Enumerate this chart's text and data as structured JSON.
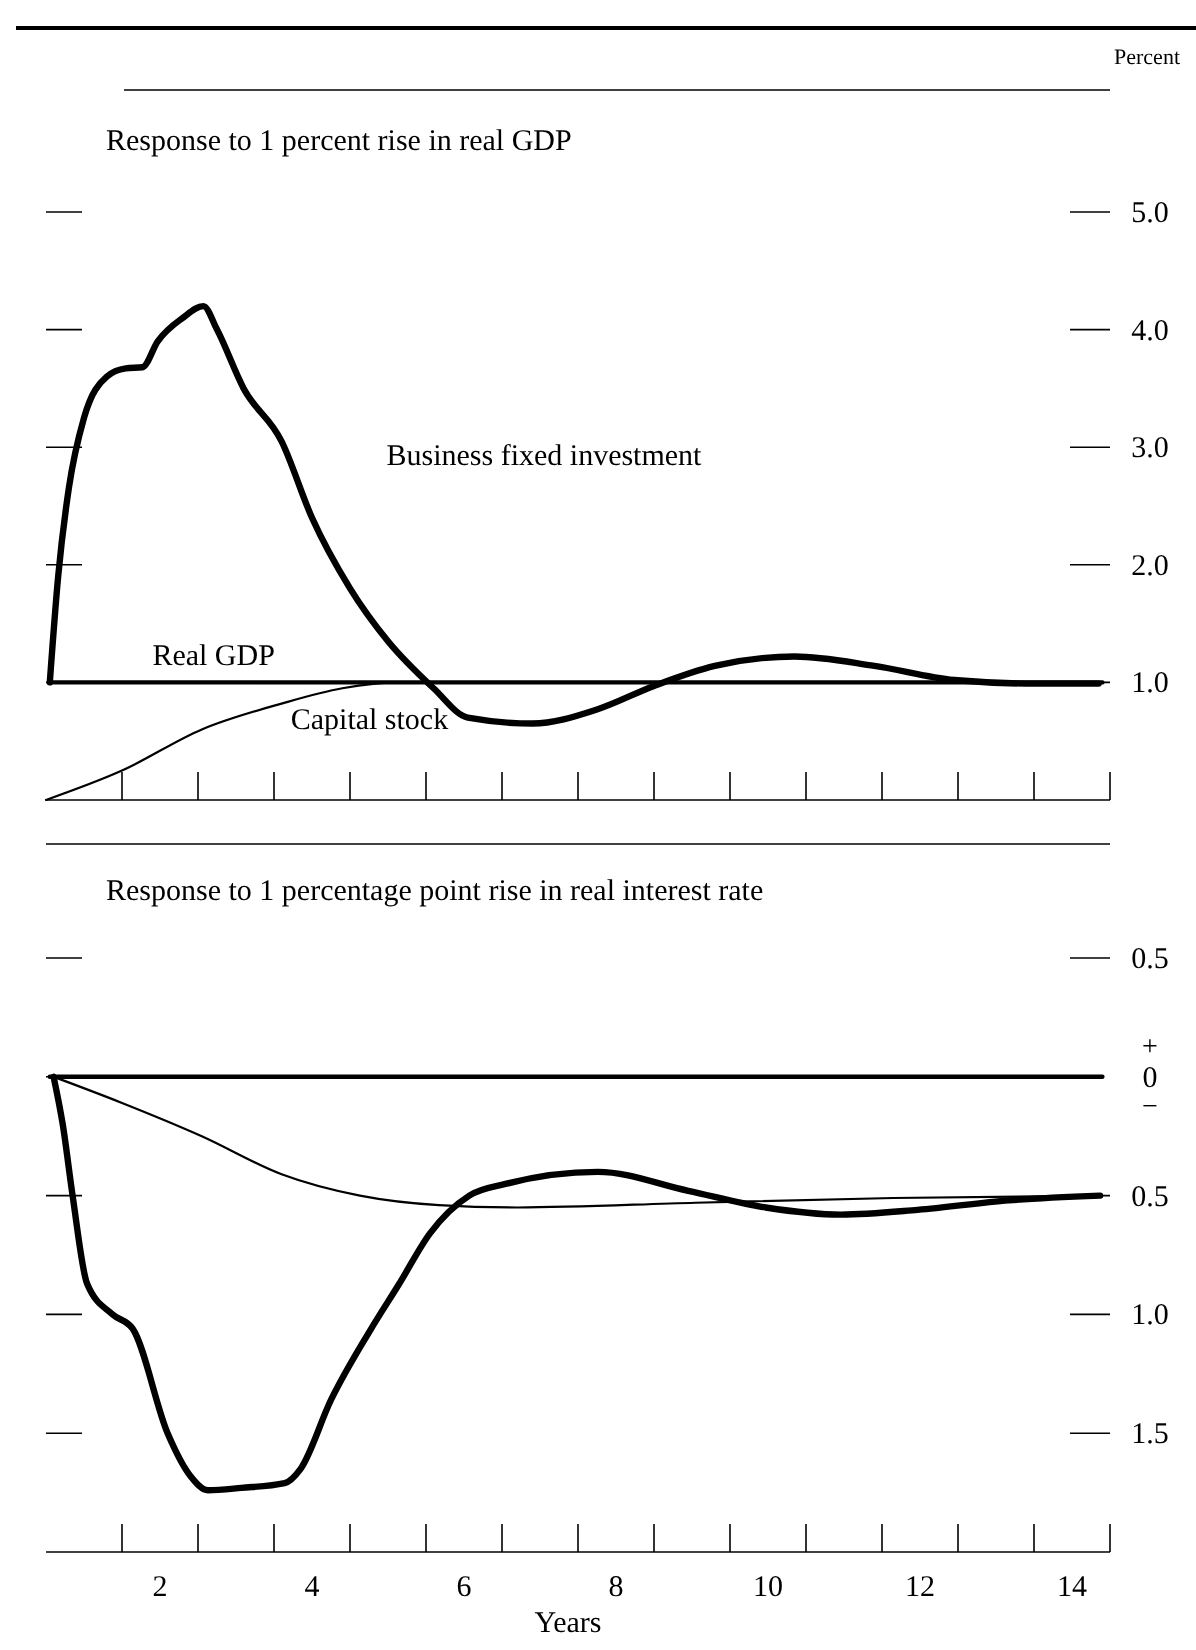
{
  "chart_data": [
    {
      "type": "line",
      "title": "Response to 1 percent rise in real GDP",
      "ylabel": "Percent",
      "tick_labels": "y",
      "grid": false,
      "line_style": "solid",
      "xlim": [
        0.5,
        14.5
      ],
      "xticks": [
        {
          "value": 1.5,
          "label": null
        },
        {
          "value": 2.5,
          "label": null
        },
        {
          "value": 3.5,
          "label": null
        },
        {
          "value": 4.5,
          "label": null
        },
        {
          "value": 5.5,
          "label": null
        },
        {
          "value": 6.5,
          "label": null
        },
        {
          "value": 7.5,
          "label": null
        },
        {
          "value": 8.5,
          "label": null
        },
        {
          "value": 9.5,
          "label": null
        },
        {
          "value": 10.5,
          "label": null
        },
        {
          "value": 11.5,
          "label": null
        },
        {
          "value": 12.5,
          "label": null
        },
        {
          "value": 13.5,
          "label": null
        },
        {
          "value": 14.5,
          "label": null
        }
      ],
      "ylim": [
        0,
        5
      ],
      "yticks": [
        {
          "value": 1,
          "label": "1.0"
        },
        {
          "value": 2,
          "label": "2.0"
        },
        {
          "value": 3,
          "label": "3.0"
        },
        {
          "value": 4,
          "label": "4.0"
        },
        {
          "value": 5,
          "label": "5.0"
        }
      ],
      "series": [
        {
          "name": "Business fixed investment",
          "color": "#000000",
          "x": [
            0.55,
            0.66,
            0.8,
            1.0,
            1.3,
            1.55,
            1.77,
            1.97,
            2.3,
            2.57,
            2.75,
            3.1,
            3.6,
            4.0,
            4.5,
            5.0,
            5.6,
            6.05,
            6.9,
            7.75,
            8.5,
            9.3,
            10.35,
            11.4,
            12.45,
            13.5,
            14.35
          ],
          "values": [
            1.0,
            1.9,
            2.65,
            3.25,
            3.6,
            3.67,
            3.68,
            3.9,
            4.1,
            4.2,
            4.0,
            3.5,
            3.05,
            2.4,
            1.8,
            1.35,
            0.95,
            0.7,
            0.65,
            0.77,
            0.97,
            1.14,
            1.22,
            1.14,
            1.02,
            0.99,
            0.99
          ]
        },
        {
          "name": "Real GDP",
          "color": "#000000",
          "x": [
            0.55,
            14.4
          ],
          "values": [
            1.0,
            1.0
          ]
        },
        {
          "name": "Capital stock",
          "color": "#000000",
          "x": [
            0.5,
            1.5,
            2.55,
            3.6,
            4.4,
            5.15,
            8.0,
            14.4
          ],
          "values": [
            0,
            0.25,
            0.6,
            0.82,
            0.95,
            1.0,
            1.0,
            1.0
          ]
        }
      ]
    },
    {
      "type": "line",
      "title": "Response to 1 percentage point rise in real interest rate",
      "xlabel": "Years",
      "grid": false,
      "line_style": "solid",
      "annotations": [
        "+",
        "−"
      ],
      "xlim": [
        0.5,
        14.5
      ],
      "xticks": [
        {
          "value": 1.5,
          "label": null
        },
        2,
        {
          "value": 2.5,
          "label": null
        },
        {
          "value": 3.5,
          "label": null
        },
        4,
        {
          "value": 4.5,
          "label": null
        },
        {
          "value": 5.5,
          "label": null
        },
        6,
        {
          "value": 6.5,
          "label": null
        },
        {
          "value": 7.5,
          "label": null
        },
        8,
        {
          "value": 8.5,
          "label": null
        },
        {
          "value": 9.5,
          "label": null
        },
        10,
        {
          "value": 10.5,
          "label": null
        },
        {
          "value": 11.5,
          "label": null
        },
        12,
        {
          "value": 12.5,
          "label": null
        },
        {
          "value": 13.5,
          "label": null
        },
        14,
        {
          "value": 14.5,
          "label": null
        }
      ],
      "ylim": [
        -2,
        0.5
      ],
      "yticks": [
        {
          "value": -1.5,
          "label": "1.5"
        },
        {
          "value": -1,
          "label": "1.0"
        },
        {
          "value": -0.5,
          "label": "0.5"
        },
        0,
        0.5
      ],
      "series": [
        {
          "color": "#000000",
          "x": [
            0.6,
            0.72,
            0.85,
            1.04,
            1.375,
            1.64,
            2.1,
            2.4,
            2.63,
            3.07,
            3.64,
            3.85,
            4.25,
            4.76,
            5.15,
            5.55,
            6.07,
            6.56,
            7.76,
            8.95,
            9.97,
            10.96,
            11.97,
            13.17,
            14.37
          ],
          "values": [
            0,
            -0.2,
            -0.5,
            -0.87,
            -1.0,
            -1.06,
            -1.5,
            -1.68,
            -1.74,
            -1.73,
            -1.71,
            -1.65,
            -1.36,
            -1.07,
            -0.87,
            -0.66,
            -0.5,
            -0.45,
            -0.4,
            -0.48,
            -0.55,
            -0.58,
            -0.56,
            -0.52,
            -0.5
          ]
        },
        {
          "color": "#000000",
          "x": [
            0.55,
            14.4
          ],
          "values": [
            0,
            0
          ]
        },
        {
          "color": "#000000",
          "x": [
            0.6,
            1.5,
            2.55,
            3.6,
            4.63,
            5.67,
            6.7,
            9.05,
            11.65,
            14.37
          ],
          "values": [
            0,
            -0.11,
            -0.25,
            -0.41,
            -0.5,
            -0.54,
            -0.55,
            -0.53,
            -0.51,
            -0.5
          ]
        }
      ]
    }
  ]
}
